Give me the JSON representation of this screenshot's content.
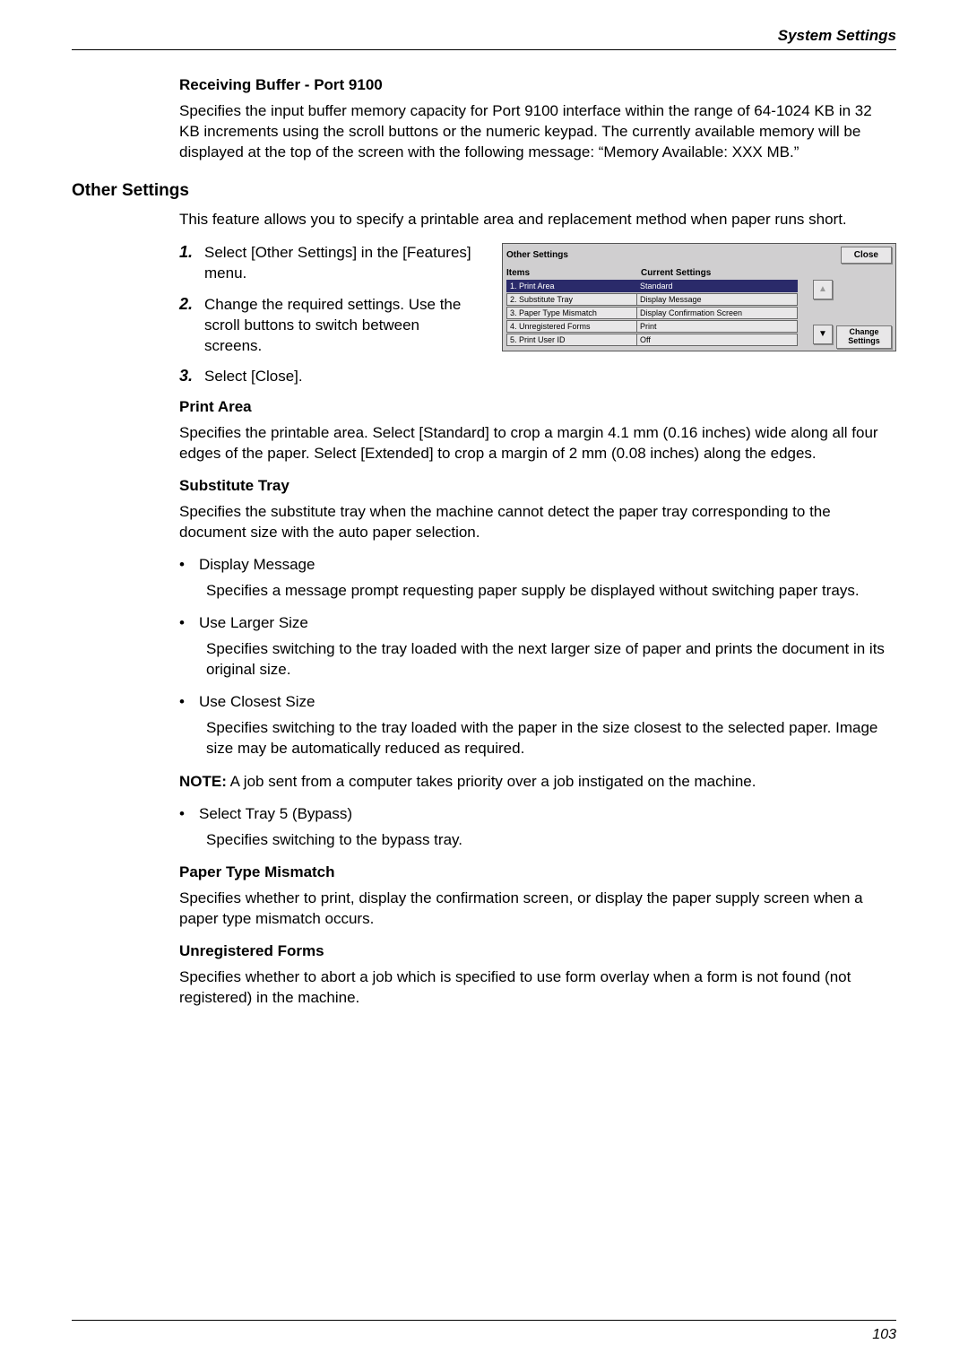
{
  "header": {
    "chapter": "System Settings"
  },
  "footer": {
    "page": "103"
  },
  "sec1": {
    "title": "Receiving Buffer - Port 9100",
    "body": "Specifies the input buffer memory capacity for Port 9100 interface within the range of 64-1024 KB in 32 KB increments using the scroll buttons or the numeric keypad. The currently available memory will be displayed at the top of the screen with the following message: “Memory Available: XXX MB.”"
  },
  "sec2": {
    "title": "Other Settings",
    "intro": "This feature allows you to specify a printable area and replacement method when paper runs short.",
    "steps": {
      "s1": "Select [Other Settings] in the [Features] menu.",
      "s2": "Change the required settings. Use the scroll buttons to switch between screens.",
      "s3": "Select [Close]."
    }
  },
  "figure": {
    "title": "Other Settings",
    "close": "Close",
    "col_items": "Items",
    "col_current": "Current Settings",
    "rows": [
      {
        "item": "1. Print Area",
        "val": "Standard",
        "selected": true
      },
      {
        "item": "2. Substitute Tray",
        "val": "Display Message",
        "selected": false
      },
      {
        "item": "3. Paper Type Mismatch",
        "val": "Display Confirmation Screen",
        "selected": false
      },
      {
        "item": "4. Unregistered Forms",
        "val": "Print",
        "selected": false
      },
      {
        "item": "5. Print User ID",
        "val": "Off",
        "selected": false
      }
    ],
    "change_l1": "Change",
    "change_l2": "Settings",
    "up": "▲",
    "down": "▼"
  },
  "print_area": {
    "title": "Print Area",
    "body": "Specifies the printable area. Select [Standard] to crop a margin 4.1 mm (0.16 inches) wide along all four edges of the paper. Select [Extended] to crop a margin of 2 mm (0.08 inches) along the edges."
  },
  "sub_tray": {
    "title": "Substitute Tray",
    "intro": "Specifies the substitute tray when the machine cannot detect the paper tray corresponding to the document size with the auto paper selection.",
    "b1": "Display Message",
    "b1_body": "Specifies a message prompt requesting paper supply be displayed without switching paper trays.",
    "b2": "Use Larger Size",
    "b2_body": "Specifies switching to the tray loaded with the next larger size of paper and prints the document in its original size.",
    "b3": "Use Closest Size",
    "b3_body": "Specifies switching to the tray loaded with the paper in the size closest to the selected paper. Image size may be automatically reduced as required.",
    "note_label": "NOTE:",
    "note_body": " A job sent from a computer takes priority over a job instigated on the machine.",
    "b4": "Select Tray 5 (Bypass)",
    "b4_body": "Specifies switching to the bypass tray."
  },
  "mismatch": {
    "title": "Paper Type Mismatch",
    "body": "Specifies whether to print, display the confirmation screen, or display the paper supply screen when a paper type mismatch occurs."
  },
  "unreg": {
    "title": "Unregistered Forms",
    "body": "Specifies whether to abort a job which is specified to use form overlay when a form is not found (not registered) in the machine."
  }
}
